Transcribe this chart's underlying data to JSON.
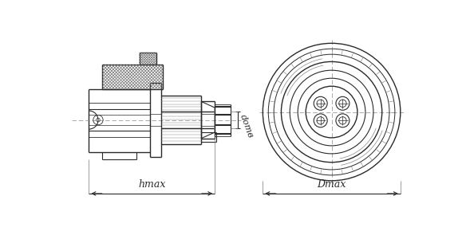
{
  "bg_color": "#ffffff",
  "line_color": "#2a2a2a",
  "fig_width": 5.84,
  "fig_height": 3.05,
  "dpi": 100,
  "lmax_label": "hmax",
  "dmax_label": "Dmax",
  "dotv_label": "dотв"
}
